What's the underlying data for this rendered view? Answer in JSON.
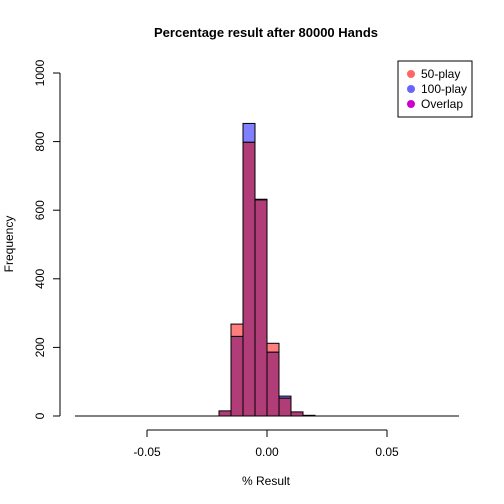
{
  "chart_data": {
    "type": "bar",
    "title": "Percentage result after 80000 Hands",
    "xlabel": "% Result",
    "ylabel": "Frequency",
    "xlim": [
      -0.08,
      0.08
    ],
    "ylim": [
      0,
      1000
    ],
    "x_ticks": [
      -0.05,
      0.0,
      0.05
    ],
    "x_tick_labels": [
      "-0.05",
      "0.00",
      "0.05"
    ],
    "y_ticks": [
      0,
      200,
      400,
      600,
      800,
      1000
    ],
    "y_tick_labels": [
      "0",
      "200",
      "400",
      "600",
      "800",
      "1000"
    ],
    "bin_width": 0.005,
    "bin_starts": [
      -0.02,
      -0.015,
      -0.01,
      -0.005,
      0.0,
      0.005,
      0.01,
      0.015
    ],
    "series": [
      {
        "name": "50-play",
        "color": "#FF000080",
        "values": [
          15,
          268,
          798,
          630,
          212,
          52,
          12,
          2
        ]
      },
      {
        "name": "100-play",
        "color": "#0000FF80",
        "values": [
          15,
          232,
          853,
          632,
          186,
          58,
          12,
          2
        ]
      }
    ],
    "overlap": {
      "name": "Overlap",
      "color": "#CC00CC"
    },
    "legend": {
      "position": "top-right",
      "entries": [
        {
          "label": "50-play",
          "color": "#FF6666"
        },
        {
          "label": "100-play",
          "color": "#6666FF"
        },
        {
          "label": "Overlap",
          "color": "#CC00CC"
        }
      ]
    },
    "grid": false
  }
}
